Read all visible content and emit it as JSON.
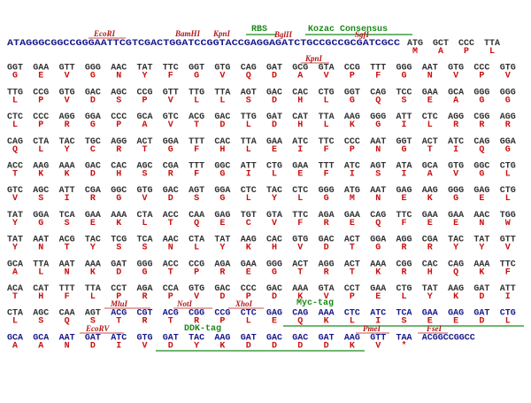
{
  "leader": "ATAGGGCGGCCGGGAATTCGTCGACTGGATCCGGTACCGAGGAGATCTGCCGCCGCGATCGCC",
  "trailer": "ACGGCCGGCC",
  "annotations": {
    "ecori": "EcoRI",
    "bamhi": "BamHI",
    "kpni_1": "KpnI",
    "rbs": "RBS",
    "bglii": "BglII",
    "kozac": "Kozac Consensus",
    "sgfi": "SgfI",
    "kpni_2": "KpnI",
    "mlui": "MluI",
    "noti": "NotI",
    "xhoi": "XhoI",
    "myc": "Myc-tag",
    "ecorv": "EcoRV",
    "ddk": "DDK-tag",
    "pmei": "PmeI",
    "fsei": "FseI"
  },
  "rows": [
    {
      "codons": [
        "ATG",
        "GCT",
        "CCC",
        "TTA"
      ],
      "aa": [
        "M",
        "A",
        "P",
        "L"
      ]
    },
    {
      "codons": [
        "GGT",
        "GAA",
        "GTT",
        "GGG",
        "AAC",
        "TAT",
        "TTC",
        "GGT",
        "GTG",
        "CAG",
        "GAT",
        "GCG",
        "GTA",
        "CCG",
        "TTT",
        "GGG",
        "AAT",
        "GTG",
        "CCC",
        "GTG"
      ],
      "aa": [
        "G",
        "E",
        "V",
        "G",
        "N",
        "Y",
        "F",
        "G",
        "V",
        "Q",
        "D",
        "A",
        "V",
        "P",
        "F",
        "G",
        "N",
        "V",
        "P",
        "V"
      ]
    },
    {
      "codons": [
        "TTG",
        "CCG",
        "GTG",
        "GAC",
        "AGC",
        "CCG",
        "GTT",
        "TTG",
        "TTA",
        "AGT",
        "GAC",
        "CAC",
        "CTG",
        "GGT",
        "CAG",
        "TCC",
        "GAA",
        "GCA",
        "GGG",
        "GGG"
      ],
      "aa": [
        "L",
        "P",
        "V",
        "D",
        "S",
        "P",
        "V",
        "L",
        "L",
        "S",
        "D",
        "H",
        "L",
        "G",
        "Q",
        "S",
        "E",
        "A",
        "G",
        "G"
      ]
    },
    {
      "codons": [
        "CTC",
        "CCC",
        "AGG",
        "GGA",
        "CCC",
        "GCA",
        "GTC",
        "ACG",
        "GAC",
        "TTG",
        "GAT",
        "CAT",
        "TTA",
        "AAG",
        "GGG",
        "ATT",
        "CTC",
        "AGG",
        "CGG",
        "AGG"
      ],
      "aa": [
        "L",
        "P",
        "R",
        "G",
        "P",
        "A",
        "V",
        "T",
        "D",
        "L",
        "D",
        "H",
        "L",
        "K",
        "G",
        "I",
        "L",
        "R",
        "R",
        "R"
      ]
    },
    {
      "codons": [
        "CAG",
        "CTA",
        "TAC",
        "TGC",
        "AGG",
        "ACT",
        "GGA",
        "TTT",
        "CAC",
        "TTA",
        "GAA",
        "ATC",
        "TTC",
        "CCC",
        "AAT",
        "GGT",
        "ACT",
        "ATC",
        "CAG",
        "GGA"
      ],
      "aa": [
        "Q",
        "L",
        "Y",
        "C",
        "R",
        "T",
        "G",
        "F",
        "H",
        "L",
        "E",
        "I",
        "F",
        "P",
        "N",
        "G",
        "T",
        "I",
        "Q",
        "G"
      ]
    },
    {
      "codons": [
        "ACC",
        "AAG",
        "AAA",
        "GAC",
        "CAC",
        "AGC",
        "CGA",
        "TTT",
        "GGC",
        "ATT",
        "CTG",
        "GAA",
        "TTT",
        "ATC",
        "AGT",
        "ATA",
        "GCA",
        "GTG",
        "GGC",
        "CTG"
      ],
      "aa": [
        "T",
        "K",
        "K",
        "D",
        "H",
        "S",
        "R",
        "F",
        "G",
        "I",
        "L",
        "E",
        "F",
        "I",
        "S",
        "I",
        "A",
        "V",
        "G",
        "L"
      ]
    },
    {
      "codons": [
        "GTC",
        "AGC",
        "ATT",
        "CGA",
        "GGC",
        "GTG",
        "GAC",
        "AGT",
        "GGA",
        "CTC",
        "TAC",
        "CTC",
        "GGG",
        "ATG",
        "AAT",
        "GAG",
        "AAG",
        "GGG",
        "GAG",
        "CTG"
      ],
      "aa": [
        "V",
        "S",
        "I",
        "R",
        "G",
        "V",
        "D",
        "S",
        "G",
        "L",
        "Y",
        "L",
        "G",
        "M",
        "N",
        "E",
        "K",
        "G",
        "E",
        "L"
      ]
    },
    {
      "codons": [
        "TAT",
        "GGA",
        "TCA",
        "GAA",
        "AAA",
        "CTA",
        "ACC",
        "CAA",
        "GAG",
        "TGT",
        "GTA",
        "TTC",
        "AGA",
        "GAA",
        "CAG",
        "TTC",
        "GAA",
        "GAA",
        "AAC",
        "TGG"
      ],
      "aa": [
        "Y",
        "G",
        "S",
        "E",
        "K",
        "L",
        "T",
        "Q",
        "E",
        "C",
        "V",
        "F",
        "R",
        "E",
        "Q",
        "F",
        "E",
        "E",
        "N",
        "W"
      ]
    },
    {
      "codons": [
        "TAT",
        "AAT",
        "ACG",
        "TAC",
        "TCG",
        "TCA",
        "AAC",
        "CTA",
        "TAT",
        "AAG",
        "CAC",
        "GTG",
        "GAC",
        "ACT",
        "GGA",
        "AGG",
        "CGA",
        "TAC",
        "TAT",
        "GTT"
      ],
      "aa": [
        "Y",
        "N",
        "T",
        "Y",
        "S",
        "S",
        "N",
        "L",
        "Y",
        "K",
        "H",
        "V",
        "D",
        "T",
        "G",
        "R",
        "R",
        "Y",
        "Y",
        "V"
      ]
    },
    {
      "codons": [
        "GCA",
        "TTA",
        "AAT",
        "AAA",
        "GAT",
        "GGG",
        "ACC",
        "CCG",
        "AGA",
        "GAA",
        "GGG",
        "ACT",
        "AGG",
        "ACT",
        "AAA",
        "CGG",
        "CAC",
        "CAG",
        "AAA",
        "TTC"
      ],
      "aa": [
        "A",
        "L",
        "N",
        "K",
        "D",
        "G",
        "T",
        "P",
        "R",
        "E",
        "G",
        "T",
        "R",
        "T",
        "K",
        "R",
        "H",
        "Q",
        "K",
        "F"
      ]
    },
    {
      "codons": [
        "ACA",
        "CAT",
        "TTT",
        "TTA",
        "CCT",
        "AGA",
        "CCA",
        "GTG",
        "GAC",
        "CCC",
        "GAC",
        "AAA",
        "GTA",
        "CCT",
        "GAA",
        "CTG",
        "TAT",
        "AAG",
        "GAT",
        "ATT"
      ],
      "aa": [
        "T",
        "H",
        "F",
        "L",
        "P",
        "R",
        "P",
        "V",
        "D",
        "P",
        "D",
        "K",
        "V",
        "P",
        "E",
        "L",
        "Y",
        "K",
        "D",
        "I"
      ]
    },
    {
      "codons": [
        "CTA",
        "AGC",
        "CAA",
        "AGT",
        "ACG",
        "CGT",
        "ACG",
        "CGG",
        "CCG",
        "CTC",
        "GAG",
        "CAG",
        "AAA",
        "CTC",
        "ATC",
        "TCA",
        "GAA",
        "GAG",
        "GAT",
        "CTG"
      ],
      "aa": [
        "L",
        "S",
        "Q",
        "S",
        "T",
        "R",
        "T",
        "R",
        "P",
        "L",
        "E",
        "Q",
        "K",
        "L",
        "I",
        "S",
        "E",
        "E",
        "D",
        "L"
      ]
    },
    {
      "codons": [
        "GCA",
        "GCA",
        "AAT",
        "GAT",
        "ATC",
        "GTG",
        "GAT",
        "TAC",
        "AAG",
        "GAT",
        "GAC",
        "GAC",
        "GAT",
        "AAG",
        "GTT",
        "TAA"
      ],
      "aa": [
        "A",
        "A",
        "N",
        "D",
        "I",
        "V",
        "D",
        "Y",
        "K",
        "D",
        "D",
        "D",
        "D",
        "K",
        "V",
        "*"
      ]
    }
  ]
}
